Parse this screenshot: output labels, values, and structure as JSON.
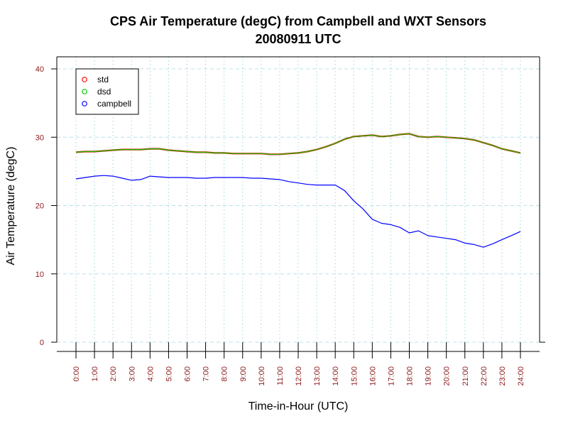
{
  "chart_data": {
    "type": "line",
    "title": "CPS Air Temperature (degC) from Campbell and WXT Sensors",
    "subtitle": "20080911  UTC",
    "xlabel": "Time-in-Hour (UTC)",
    "ylabel": "Air Temperature (degC)",
    "xlim": [
      0,
      24
    ],
    "ylim": [
      0,
      40
    ],
    "x_ticks": [
      "0:00",
      "1:00",
      "2:00",
      "3:00",
      "4:00",
      "5:00",
      "6:00",
      "7:00",
      "8:00",
      "9:00",
      "10:00",
      "11:00",
      "12:00",
      "13:00",
      "14:00",
      "15:00",
      "16:00",
      "17:00",
      "18:00",
      "19:00",
      "20:00",
      "21:00",
      "22:00",
      "23:00",
      "24:00"
    ],
    "y_ticks": [
      "0",
      "10",
      "20",
      "30",
      "40"
    ],
    "grid": true,
    "legend_position": "top-left",
    "x": [
      0,
      0.5,
      1,
      1.5,
      2,
      2.5,
      3,
      3.5,
      4,
      4.5,
      5,
      5.5,
      6,
      6.5,
      7,
      7.5,
      8,
      8.5,
      9,
      9.5,
      10,
      10.5,
      11,
      11.5,
      12,
      12.5,
      13,
      13.5,
      14,
      14.5,
      15,
      15.5,
      16,
      16.5,
      17,
      17.5,
      18,
      18.5,
      19,
      19.5,
      20,
      20.5,
      21,
      21.5,
      22,
      22.5,
      23,
      23.5,
      24
    ],
    "series": [
      {
        "name": "std",
        "color": "#ff0000",
        "values": [
          27.8,
          27.9,
          27.9,
          28.0,
          28.1,
          28.2,
          28.2,
          28.2,
          28.3,
          28.3,
          28.1,
          28.0,
          27.9,
          27.8,
          27.8,
          27.7,
          27.7,
          27.6,
          27.6,
          27.6,
          27.6,
          27.5,
          27.5,
          27.6,
          27.7,
          27.9,
          28.2,
          28.6,
          29.1,
          29.7,
          30.1,
          30.2,
          30.3,
          30.1,
          30.2,
          30.4,
          30.5,
          30.1,
          30.0,
          30.1,
          30.0,
          29.9,
          29.8,
          29.6,
          29.2,
          28.8,
          28.3,
          28.0,
          27.7
        ]
      },
      {
        "name": "dsd",
        "color": "#00cc00",
        "values": [
          27.8,
          27.9,
          27.9,
          28.0,
          28.1,
          28.2,
          28.2,
          28.2,
          28.3,
          28.3,
          28.1,
          28.0,
          27.9,
          27.8,
          27.8,
          27.7,
          27.7,
          27.6,
          27.6,
          27.6,
          27.6,
          27.5,
          27.5,
          27.6,
          27.7,
          27.9,
          28.2,
          28.6,
          29.1,
          29.7,
          30.1,
          30.2,
          30.3,
          30.1,
          30.2,
          30.4,
          30.5,
          30.1,
          30.0,
          30.1,
          30.0,
          29.9,
          29.8,
          29.6,
          29.2,
          28.8,
          28.3,
          28.0,
          27.7
        ]
      },
      {
        "name": "campbell",
        "color": "#0000ff",
        "values": [
          23.9,
          24.1,
          24.3,
          24.4,
          24.3,
          24.0,
          23.7,
          23.8,
          24.3,
          24.2,
          24.1,
          24.1,
          24.1,
          24.0,
          24.0,
          24.1,
          24.1,
          24.1,
          24.1,
          24.0,
          24.0,
          23.9,
          23.8,
          23.5,
          23.3,
          23.1,
          23.0,
          23.0,
          23.0,
          22.2,
          20.7,
          19.5,
          18.0,
          17.4,
          17.2,
          16.8,
          16.0,
          16.3,
          15.6,
          15.4,
          15.2,
          15.0,
          14.5,
          14.3,
          13.9,
          14.4,
          15.0,
          15.6,
          16.2
        ]
      }
    ]
  }
}
